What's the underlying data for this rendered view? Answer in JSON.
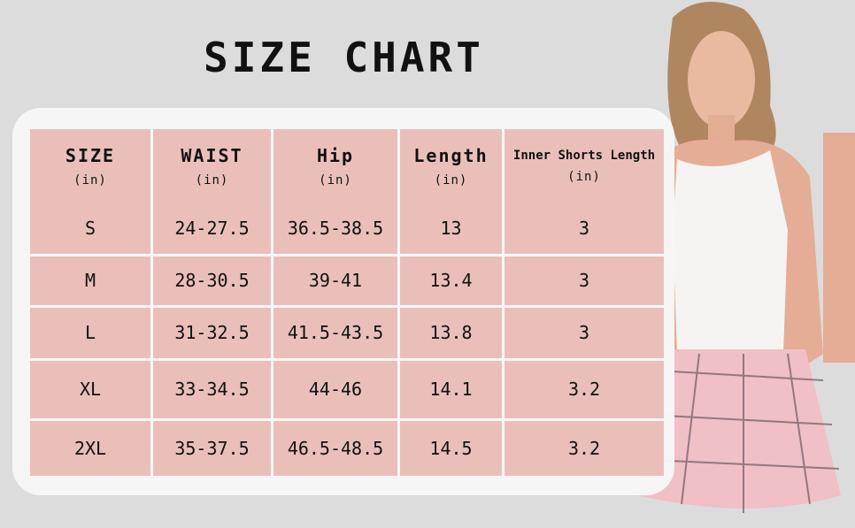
{
  "title": "SIZE CHART",
  "colors": {
    "background": "#dcdcdc",
    "card": "#f7f7f7",
    "table_cell": "#eabfba"
  },
  "table": {
    "headers": [
      {
        "label": "SIZE",
        "unit": "(in)"
      },
      {
        "label": "WAIST",
        "unit": "(in)"
      },
      {
        "label": "Hip",
        "unit": "(in)"
      },
      {
        "label": "Length",
        "unit": "(in)"
      },
      {
        "label": "Inner Shorts Length",
        "unit": "(in)"
      }
    ],
    "rows": [
      [
        "S",
        "24-27.5",
        "36.5-38.5",
        "13",
        "3"
      ],
      [
        "M",
        "28-30.5",
        "39-41",
        "13.4",
        "3"
      ],
      [
        "L",
        "31-32.5",
        "41.5-43.5",
        "13.8",
        "3"
      ],
      [
        "XL",
        "33-34.5",
        "44-46",
        "14.1",
        "3.2"
      ],
      [
        "2XL",
        "35-37.5",
        "46.5-48.5",
        "14.5",
        "3.2"
      ]
    ]
  }
}
